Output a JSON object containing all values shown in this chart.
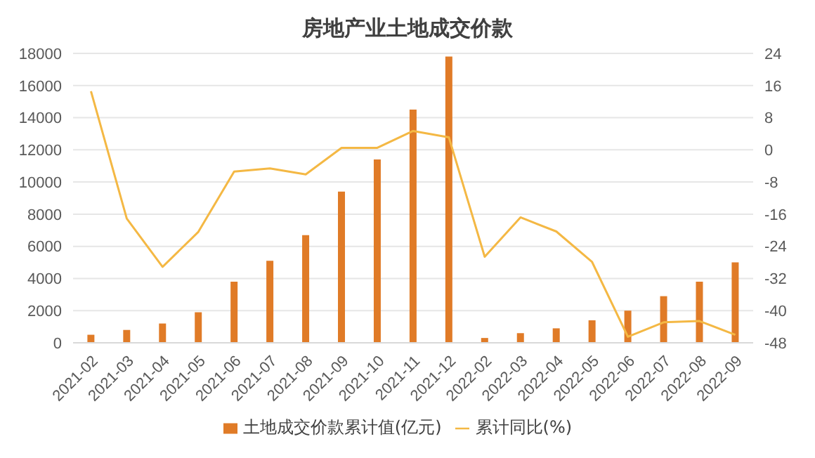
{
  "chart_data": {
    "type": "bar",
    "title": "房地产业土地成交价款",
    "categories": [
      "2021-02",
      "2021-03",
      "2021-04",
      "2021-05",
      "2021-06",
      "2021-07",
      "2021-08",
      "2021-09",
      "2021-10",
      "2021-11",
      "2021-12",
      "2022-02",
      "2022-03",
      "2022-04",
      "2022-05",
      "2022-06",
      "2022-07",
      "2022-08",
      "2022-09"
    ],
    "series": [
      {
        "name": "土地成交价款累计值(亿元)",
        "color": "#e07b27",
        "values": [
          500,
          800,
          1200,
          1900,
          3800,
          5100,
          6700,
          9400,
          11400,
          14500,
          17800,
          300,
          600,
          900,
          1400,
          2000,
          2900,
          3800,
          5000
        ]
      },
      {
        "name": "累计同比(%)",
        "type": "line",
        "axis": "y2",
        "color": "#f4b844",
        "values": [
          14.6,
          -17.1,
          -29.1,
          -20.4,
          -5.4,
          -4.6,
          -6.1,
          0.5,
          0.5,
          4.7,
          3.1,
          -26.6,
          -16.8,
          -20.3,
          -27.9,
          -46.5,
          -42.9,
          -42.6,
          -46
        ]
      }
    ],
    "ylim": [
      0,
      18000
    ],
    "yticks": [
      0,
      2000,
      4000,
      6000,
      8000,
      10000,
      12000,
      14000,
      16000,
      18000
    ],
    "y2lim": [
      -48,
      24
    ],
    "y2ticks": [
      -48,
      -40,
      -32,
      -24,
      -16,
      -8,
      0,
      8,
      16,
      24
    ],
    "grid": "y",
    "legend": "bottom",
    "marker": "none"
  }
}
